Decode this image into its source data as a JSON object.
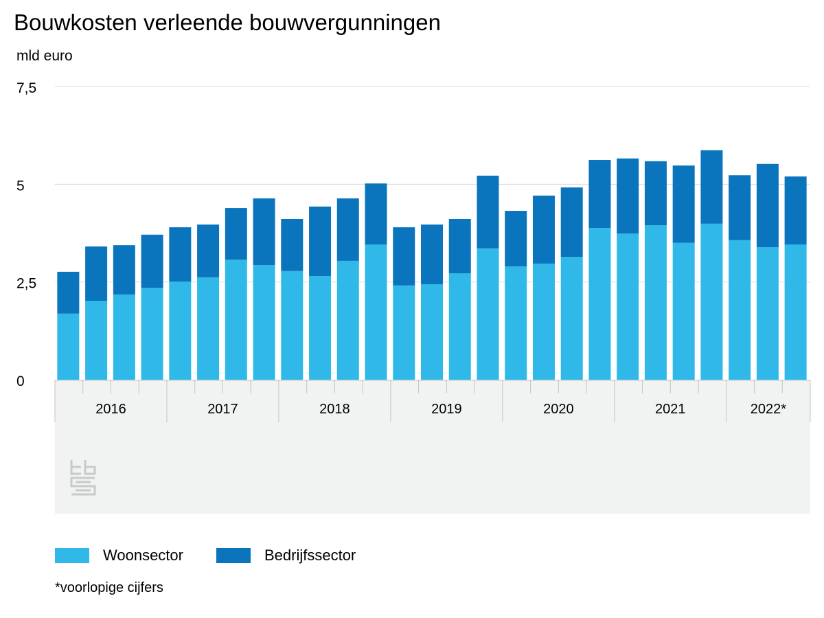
{
  "title": "Bouwkosten verleende bouwvergunningen",
  "unit": "mld euro",
  "footnote": "*voorlopige cijfers",
  "logo": "cbs",
  "chart_data": {
    "type": "bar",
    "stacked": true,
    "title": "Bouwkosten verleende bouwvergunningen",
    "ylabel": "mld euro",
    "ylim": [
      0,
      7.5
    ],
    "yticks": [
      0,
      2.5,
      5,
      7.5
    ],
    "ytick_labels": [
      "0",
      "2,5",
      "5",
      "7,5"
    ],
    "grid": true,
    "legend_position": "bottom",
    "years": [
      "2016",
      "2017",
      "2018",
      "2019",
      "2020",
      "2021",
      "2022*"
    ],
    "categories": [
      "2016 K1",
      "2016 K2",
      "2016 K3",
      "2016 K4",
      "2017 K1",
      "2017 K2",
      "2017 K3",
      "2017 K4",
      "2018 K1",
      "2018 K2",
      "2018 K3",
      "2018 K4",
      "2019 K1",
      "2019 K2",
      "2019 K3",
      "2019 K4",
      "2020 K1",
      "2020 K2",
      "2020 K3",
      "2020 K4",
      "2021 K1",
      "2021 K2",
      "2021 K3",
      "2021 K4",
      "2022 K1",
      "2022 K2",
      "2022 K3"
    ],
    "series": [
      {
        "name": "Woonsector",
        "color": "#30b9e8",
        "values": [
          1.69,
          2.02,
          2.18,
          2.35,
          2.51,
          2.62,
          3.07,
          2.93,
          2.78,
          2.65,
          3.04,
          3.46,
          2.41,
          2.44,
          2.72,
          3.36,
          2.9,
          2.97,
          3.14,
          3.88,
          3.74,
          3.95,
          3.5,
          3.99,
          3.57,
          3.39,
          3.46
        ]
      },
      {
        "name": "Bedrijfssector",
        "color": "#0a74bd",
        "values": [
          1.07,
          1.39,
          1.26,
          1.36,
          1.39,
          1.35,
          1.32,
          1.71,
          1.33,
          1.78,
          1.6,
          1.56,
          1.49,
          1.53,
          1.39,
          1.86,
          1.42,
          1.74,
          1.78,
          1.74,
          1.92,
          1.64,
          1.98,
          1.88,
          1.66,
          2.13,
          1.74
        ]
      }
    ]
  }
}
